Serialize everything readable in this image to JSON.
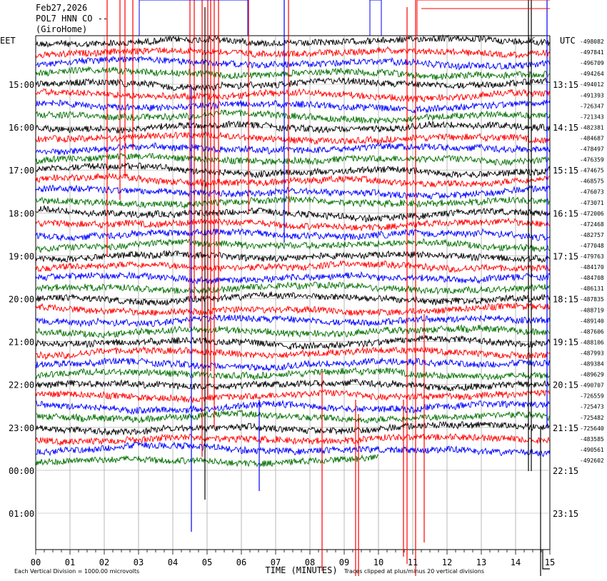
{
  "header": {
    "date": "Feb27,2026",
    "station": "POL7 HNN CO --",
    "network": "(GiroHome)"
  },
  "chart_data": {
    "type": "line",
    "title": "Feb27,2026",
    "subtitle": "POL7 HNN CO --",
    "left_tz": "EET",
    "right_tz": "UTC",
    "left_hour_labels": [
      "15:00",
      "16:00",
      "17:00",
      "18:00",
      "19:00",
      "20:00",
      "21:00",
      "22:00",
      "23:00",
      "00:00",
      "01:00"
    ],
    "right_hour_labels": [
      "13:15",
      "14:15",
      "15:15",
      "16:15",
      "17:15",
      "18:15",
      "19:15",
      "20:15",
      "21:15",
      "22:15",
      "23:15"
    ],
    "row_offsets": [
      "-498082",
      "-497841",
      "-496709",
      "-494264",
      "-494012",
      "-491393",
      "-726347",
      "-721343",
      "-482381",
      "-484687",
      "-478497",
      "-476359",
      "-474675",
      "-468575",
      "-476073",
      "-473071",
      "-472006",
      "-472468",
      "-482757",
      "-477048",
      "-479763",
      "-484170",
      "-484708",
      "-486131",
      "-487835",
      "-488719",
      "-489140",
      "-487606",
      "-488106",
      "-487993",
      "-489384",
      "-489629",
      "-490707",
      "-726559",
      "-725473",
      "-725482",
      "-725640",
      "-483585",
      "-490561",
      "-492602"
    ],
    "x_ticks": [
      "00",
      "01",
      "02",
      "03",
      "04",
      "05",
      "06",
      "07",
      "08",
      "09",
      "10",
      "11",
      "12",
      "13",
      "14",
      "15"
    ],
    "xlabel": "TIME (MINUTES)",
    "xlim": [
      0,
      15
    ],
    "trace_colors": [
      "#000000",
      "#ff0000",
      "#0000ff",
      "#007000"
    ],
    "rows_per_hour": 4,
    "total_rows": 40,
    "last_row_end_minute": 10,
    "footer_left": "Each Vertical Division = 1000.00 microvolts",
    "footer_right": "Traces clipped at plus/minus 20 vertical divisions",
    "corner_mark": "UC"
  }
}
